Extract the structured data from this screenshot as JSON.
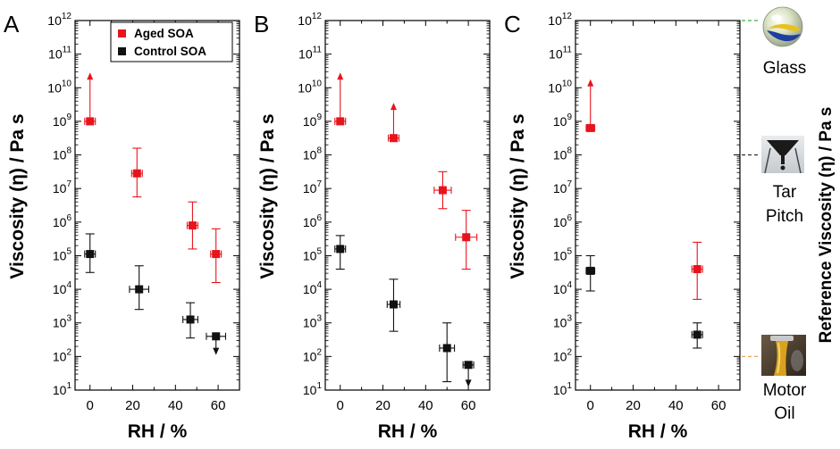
{
  "figure": {
    "y_label": "Viscosity  (η) / Pa s",
    "x_label": "RH / %",
    "reference_axis_label": "Reference Viscosity  (η) / Pa s",
    "legend": {
      "aged": "Aged SOA",
      "control": "Control SOA"
    },
    "colors": {
      "aged": "#e8141c",
      "control": "#111111",
      "glass_line": "#3fb03f",
      "pitch_line": "#222222",
      "oil_line": "#e6a65a"
    }
  },
  "chart_data": [
    {
      "type": "scatter",
      "panel": "A",
      "xlim": [
        -7,
        70
      ],
      "ylim": [
        1,
        12
      ],
      "y_scale": "log10",
      "x_ticks": [
        0,
        20,
        40,
        60
      ],
      "y_ticks": [
        1,
        2,
        3,
        4,
        5,
        6,
        7,
        8,
        9,
        10,
        11,
        12
      ],
      "legend": "top-right",
      "series": [
        {
          "name": "Aged SOA",
          "key": "aged",
          "points": [
            {
              "x": 0,
              "xerr": 2.5,
              "log_y": 9.0,
              "log_low": 9.0,
              "log_high": 10.4,
              "lower_bound": true
            },
            {
              "x": 22,
              "xerr": 2.5,
              "log_y": 7.45,
              "log_low": 6.75,
              "log_high": 8.2
            },
            {
              "x": 48,
              "xerr": 2.5,
              "log_y": 5.9,
              "log_low": 5.2,
              "log_high": 6.6
            },
            {
              "x": 59,
              "xerr": 2.5,
              "log_y": 5.05,
              "log_low": 4.2,
              "log_high": 5.8
            }
          ]
        },
        {
          "name": "Control SOA",
          "key": "control",
          "points": [
            {
              "x": 0,
              "xerr": 2.5,
              "log_y": 5.05,
              "log_low": 4.5,
              "log_high": 5.65
            },
            {
              "x": 23,
              "xerr": 4.5,
              "log_y": 4.0,
              "log_low": 3.4,
              "log_high": 4.7
            },
            {
              "x": 47,
              "xerr": 3.5,
              "log_y": 3.1,
              "log_low": 2.55,
              "log_high": 3.6
            },
            {
              "x": 59,
              "xerr": 4.5,
              "log_y": 2.6,
              "log_low": 2.1,
              "log_high": 2.6,
              "upper_bound": true
            }
          ]
        }
      ]
    },
    {
      "type": "scatter",
      "panel": "B",
      "xlim": [
        -7,
        70
      ],
      "ylim": [
        1,
        12
      ],
      "y_scale": "log10",
      "x_ticks": [
        0,
        20,
        40,
        60
      ],
      "y_ticks": [
        1,
        2,
        3,
        4,
        5,
        6,
        7,
        8,
        9,
        10,
        11,
        12
      ],
      "series": [
        {
          "name": "Aged SOA",
          "key": "aged",
          "points": [
            {
              "x": 0,
              "xerr": 2.5,
              "log_y": 9.0,
              "log_low": 9.0,
              "log_high": 10.4,
              "lower_bound": true
            },
            {
              "x": 25,
              "xerr": 2.5,
              "log_y": 8.5,
              "log_low": 8.5,
              "log_high": 9.5,
              "lower_bound": true
            },
            {
              "x": 48,
              "xerr": 4.0,
              "log_y": 6.95,
              "log_low": 6.4,
              "log_high": 7.5
            },
            {
              "x": 59,
              "xerr": 5.0,
              "log_y": 5.55,
              "log_low": 4.6,
              "log_high": 6.35
            }
          ]
        },
        {
          "name": "Control SOA",
          "key": "control",
          "points": [
            {
              "x": 0,
              "xerr": 2.5,
              "log_y": 5.2,
              "log_low": 4.6,
              "log_high": 5.6
            },
            {
              "x": 25,
              "xerr": 3.0,
              "log_y": 3.55,
              "log_low": 2.75,
              "log_high": 4.3
            },
            {
              "x": 50,
              "xerr": 3.5,
              "log_y": 2.25,
              "log_low": 1.25,
              "log_high": 3.0
            },
            {
              "x": 60,
              "xerr": 2.5,
              "log_y": 1.75,
              "log_low": 1.15,
              "log_high": 1.75,
              "upper_bound": true
            }
          ]
        }
      ]
    },
    {
      "type": "scatter",
      "panel": "C",
      "xlim": [
        -7,
        70
      ],
      "ylim": [
        1,
        12
      ],
      "y_scale": "log10",
      "x_ticks": [
        0,
        20,
        40,
        60
      ],
      "y_ticks": [
        1,
        2,
        3,
        4,
        5,
        6,
        7,
        8,
        9,
        10,
        11,
        12
      ],
      "series": [
        {
          "name": "Aged SOA",
          "key": "aged",
          "points": [
            {
              "x": 0,
              "xerr": 2.0,
              "log_y": 8.8,
              "log_low": 8.8,
              "log_high": 10.2,
              "lower_bound": true
            },
            {
              "x": 50,
              "xerr": 2.5,
              "log_y": 4.6,
              "log_low": 3.7,
              "log_high": 5.4
            }
          ]
        },
        {
          "name": "Control SOA",
          "key": "control",
          "points": [
            {
              "x": 0,
              "xerr": 2.0,
              "log_y": 4.55,
              "log_low": 3.95,
              "log_high": 5.0
            },
            {
              "x": 50,
              "xerr": 2.5,
              "log_y": 2.65,
              "log_low": 2.25,
              "log_high": 3.0
            }
          ]
        }
      ]
    }
  ],
  "references": [
    {
      "name": "Glass",
      "log_y": 12,
      "line": "glass_line",
      "label_lines": [
        "Glass"
      ],
      "icon": "glass-marble-icon"
    },
    {
      "name": "Tar Pitch",
      "log_y": 8,
      "line": "pitch_line",
      "label_lines": [
        "Tar",
        "Pitch"
      ],
      "icon": "tar-pitch-funnel-icon"
    },
    {
      "name": "Motor Oil",
      "log_y": 2,
      "line": "oil_line",
      "label_lines": [
        "Motor",
        "Oil"
      ],
      "icon": "motor-oil-pour-icon"
    }
  ]
}
